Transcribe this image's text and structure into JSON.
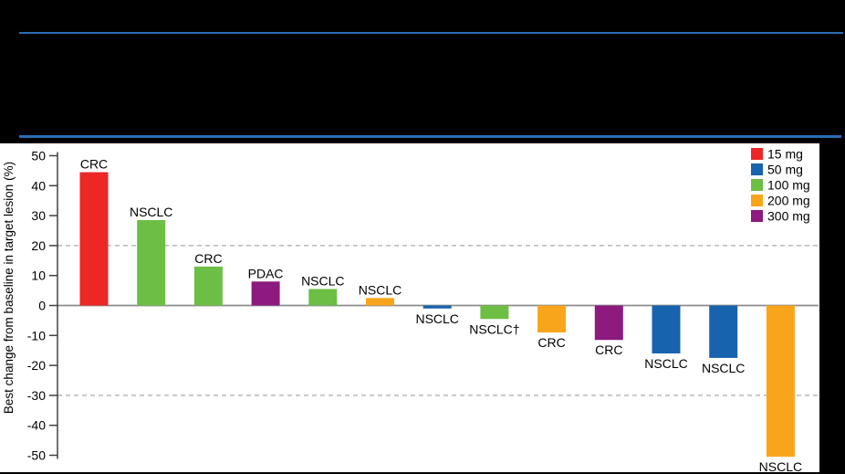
{
  "header": {
    "background": "#000000",
    "divider_color": "#2A6CB6"
  },
  "chart_data": {
    "type": "bar",
    "subtype": "waterfall",
    "title": "",
    "xlabel": "",
    "ylabel": "Best change from baseline in target lesion (%)",
    "ylim": [
      -50,
      50
    ],
    "yticks": [
      50,
      40,
      30,
      20,
      10,
      0,
      -10,
      -20,
      -30,
      -40,
      -50
    ],
    "reference_lines": [
      20,
      -30
    ],
    "grid": "dashed horizontal reference lines at +20 and -30 only",
    "legend_position": "top-right",
    "legend": [
      {
        "label": "15 mg",
        "color": "#EC2725"
      },
      {
        "label": "50 mg",
        "color": "#1763AD"
      },
      {
        "label": "100 mg",
        "color": "#6CBE45"
      },
      {
        "label": "200 mg",
        "color": "#F9A51C"
      },
      {
        "label": "300 mg",
        "color": "#8C1A7F"
      }
    ],
    "bars": [
      {
        "tumor": "CRC",
        "dose": "15 mg",
        "value": 44.5
      },
      {
        "tumor": "NSCLC",
        "dose": "100 mg",
        "value": 28.5
      },
      {
        "tumor": "CRC",
        "dose": "100 mg",
        "value": 13
      },
      {
        "tumor": "PDAC",
        "dose": "300 mg",
        "value": 8
      },
      {
        "tumor": "NSCLC",
        "dose": "100 mg",
        "value": 5.5
      },
      {
        "tumor": "NSCLC",
        "dose": "200 mg",
        "value": 2.5
      },
      {
        "tumor": "NSCLC",
        "dose": "50 mg",
        "value": -1
      },
      {
        "tumor": "NSCLC†",
        "dose": "100 mg",
        "value": -4.5
      },
      {
        "tumor": "CRC",
        "dose": "200 mg",
        "value": -9
      },
      {
        "tumor": "CRC",
        "dose": "300 mg",
        "value": -11.5
      },
      {
        "tumor": "NSCLC",
        "dose": "50 mg",
        "value": -16
      },
      {
        "tumor": "NSCLC",
        "dose": "50 mg",
        "value": -17.5
      },
      {
        "tumor": "NSCLC",
        "dose": "200 mg",
        "value": -50.5
      }
    ],
    "axis_color": "#404040",
    "zero_line_color": "#8C8C8C",
    "reference_line_color": "#AAAAAA",
    "label_color": "#000000"
  }
}
